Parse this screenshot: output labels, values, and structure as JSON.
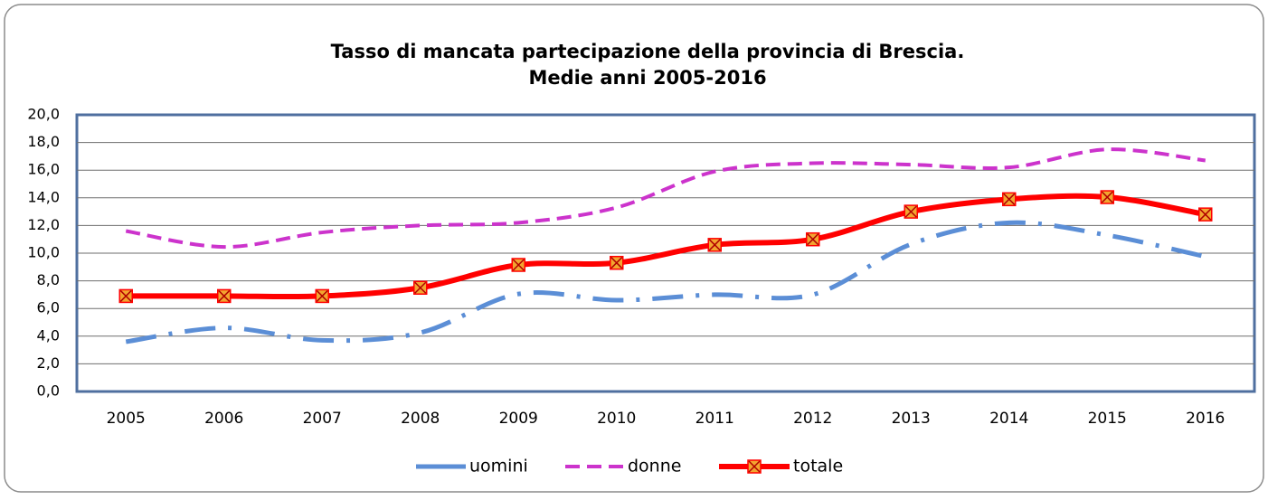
{
  "chart_data": {
    "type": "line",
    "title": "Tasso di mancata partecipazione della provincia di Brescia.",
    "subtitle": "Medie anni 2005-2016",
    "categories": [
      "2005",
      "2006",
      "2007",
      "2008",
      "2009",
      "2010",
      "2011",
      "2012",
      "2013",
      "2014",
      "2015",
      "2016"
    ],
    "series": [
      {
        "name": "uomini",
        "color": "#5b8ed6",
        "dash": "long-dash-dot",
        "values": [
          3.6,
          4.6,
          3.7,
          4.25,
          7.05,
          6.6,
          7.0,
          7.0,
          10.65,
          12.2,
          11.3,
          9.75
        ]
      },
      {
        "name": "donne",
        "color": "#cc33cc",
        "dash": "dashed",
        "values": [
          11.6,
          10.45,
          11.5,
          12.0,
          12.2,
          13.3,
          15.9,
          16.5,
          16.4,
          16.2,
          17.5,
          16.7
        ]
      },
      {
        "name": "totale",
        "color": "#ff0000",
        "dash": "solid",
        "marker": "square-x",
        "values": [
          6.9,
          6.9,
          6.9,
          7.5,
          9.15,
          9.3,
          10.6,
          11.0,
          13.0,
          13.9,
          14.05,
          12.8
        ]
      }
    ],
    "ylim": [
      0,
      20
    ],
    "yticks": [
      {
        "value": 0,
        "label": "0,0"
      },
      {
        "value": 2,
        "label": "2,0"
      },
      {
        "value": 4,
        "label": "4,0"
      },
      {
        "value": 6,
        "label": "6,0"
      },
      {
        "value": 8,
        "label": "8,0"
      },
      {
        "value": 10,
        "label": "10,0"
      },
      {
        "value": 12,
        "label": "12,0"
      },
      {
        "value": 14,
        "label": "14,0"
      },
      {
        "value": 16,
        "label": "16,0"
      },
      {
        "value": 18,
        "label": "18,0"
      },
      {
        "value": 20,
        "label": "20,0"
      }
    ],
    "grid": true,
    "smooth": true,
    "legend": "bottom"
  }
}
